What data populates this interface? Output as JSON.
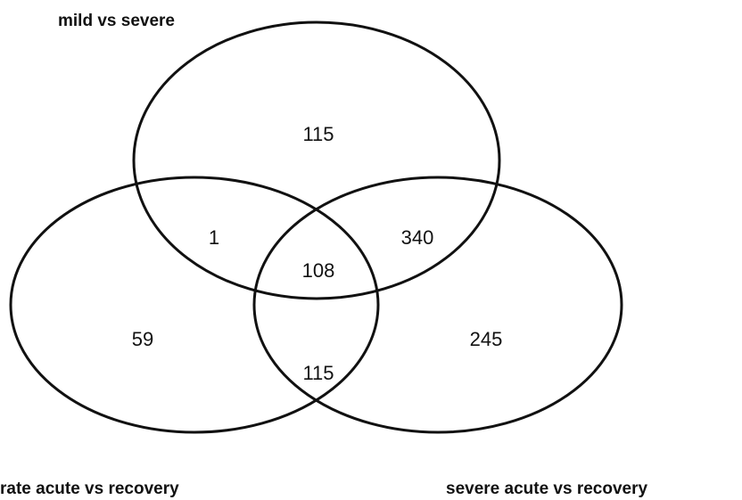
{
  "sets": [
    {
      "label": "mild vs severe"
    },
    {
      "label": "rate acute vs recovery"
    },
    {
      "label": "severe acute vs recovery"
    }
  ],
  "regions": [
    {
      "value": 115
    },
    {
      "value": 1
    },
    {
      "value": 340
    },
    {
      "value": 108
    },
    {
      "value": 59
    },
    {
      "value": 245
    },
    {
      "value": 115
    }
  ]
}
